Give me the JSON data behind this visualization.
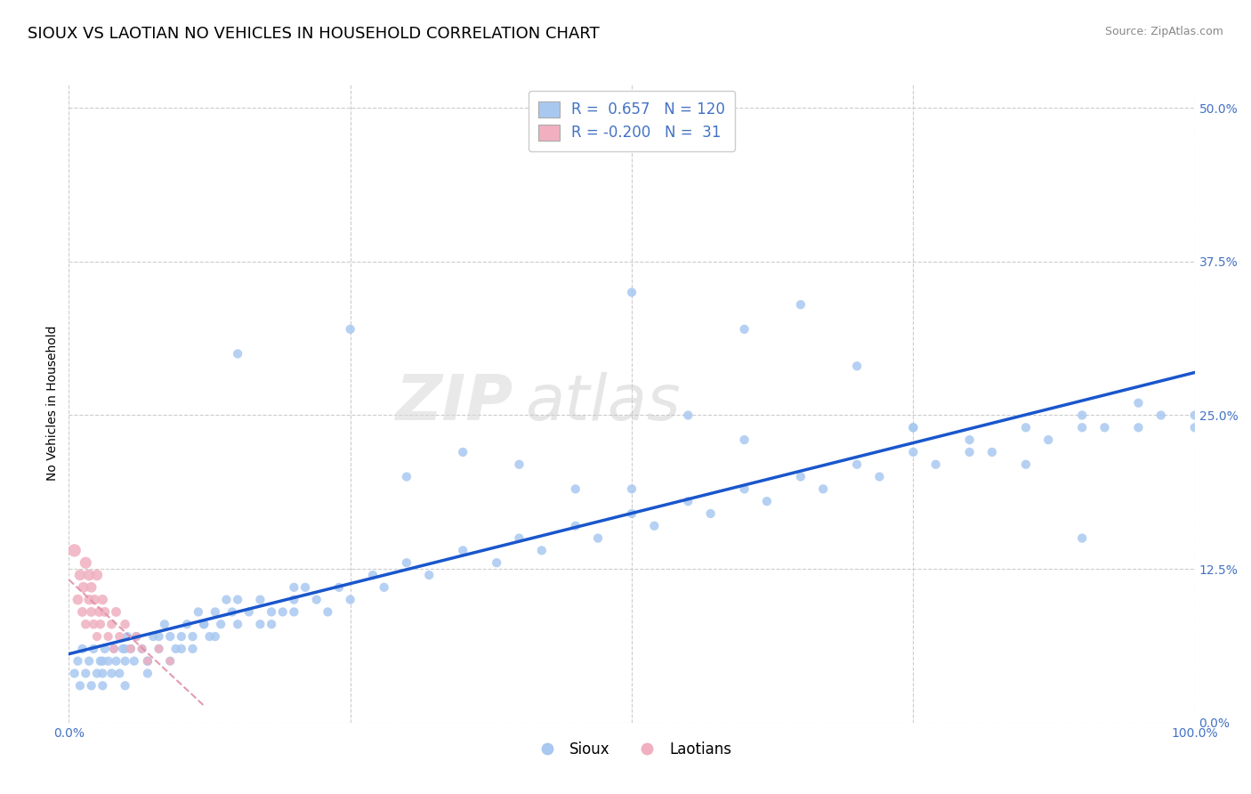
{
  "title": "SIOUX VS LAOTIAN NO VEHICLES IN HOUSEHOLD CORRELATION CHART",
  "source": "Source: ZipAtlas.com",
  "ylabel": "No Vehicles in Household",
  "xlim": [
    0.0,
    1.0
  ],
  "ylim": [
    0.0,
    0.52
  ],
  "ytick_labels": [
    "0.0%",
    "12.5%",
    "25.0%",
    "37.5%",
    "50.0%"
  ],
  "ytick_values": [
    0.0,
    0.125,
    0.25,
    0.375,
    0.5
  ],
  "xtick_labels": [
    "0.0%",
    "100.0%"
  ],
  "xtick_values": [
    0.0,
    1.0
  ],
  "sioux_R": 0.657,
  "sioux_N": 120,
  "laotian_R": -0.2,
  "laotian_N": 31,
  "sioux_color": "#a8c8f0",
  "laotian_color": "#f0b0c0",
  "sioux_line_color": "#1a56cc",
  "laotian_line_color": "#e090a8",
  "background_color": "#ffffff",
  "grid_color": "#cccccc",
  "watermark_zip": "ZIP",
  "watermark_atlas": "atlas",
  "title_fontsize": 13,
  "label_fontsize": 10,
  "tick_fontsize": 10,
  "legend_fontsize": 12,
  "accent_color": "#4472c4",
  "sioux_x": [
    0.005,
    0.008,
    0.01,
    0.012,
    0.015,
    0.018,
    0.02,
    0.022,
    0.025,
    0.028,
    0.03,
    0.032,
    0.035,
    0.038,
    0.04,
    0.042,
    0.045,
    0.048,
    0.05,
    0.052,
    0.055,
    0.058,
    0.06,
    0.065,
    0.07,
    0.075,
    0.08,
    0.085,
    0.09,
    0.095,
    0.1,
    0.105,
    0.11,
    0.115,
    0.12,
    0.125,
    0.13,
    0.135,
    0.14,
    0.145,
    0.15,
    0.16,
    0.17,
    0.18,
    0.19,
    0.2,
    0.21,
    0.22,
    0.23,
    0.24,
    0.25,
    0.27,
    0.28,
    0.3,
    0.32,
    0.35,
    0.38,
    0.4,
    0.42,
    0.45,
    0.47,
    0.5,
    0.52,
    0.55,
    0.57,
    0.6,
    0.62,
    0.65,
    0.67,
    0.7,
    0.72,
    0.75,
    0.77,
    0.8,
    0.82,
    0.85,
    0.87,
    0.9,
    0.92,
    0.95,
    0.97,
    1.0,
    0.03,
    0.05,
    0.07,
    0.08,
    0.1,
    0.12,
    0.15,
    0.18,
    0.2,
    0.25,
    0.3,
    0.35,
    0.4,
    0.45,
    0.5,
    0.55,
    0.6,
    0.65,
    0.7,
    0.75,
    0.8,
    0.85,
    0.9,
    0.95,
    1.0,
    0.03,
    0.05,
    0.07,
    0.09,
    0.11,
    0.13,
    0.15,
    0.17,
    0.2,
    0.5,
    0.6,
    0.75,
    0.9
  ],
  "sioux_y": [
    0.04,
    0.05,
    0.03,
    0.06,
    0.04,
    0.05,
    0.03,
    0.06,
    0.04,
    0.05,
    0.03,
    0.06,
    0.05,
    0.04,
    0.06,
    0.05,
    0.04,
    0.06,
    0.05,
    0.07,
    0.06,
    0.05,
    0.07,
    0.06,
    0.05,
    0.07,
    0.06,
    0.08,
    0.07,
    0.06,
    0.07,
    0.08,
    0.07,
    0.09,
    0.08,
    0.07,
    0.09,
    0.08,
    0.1,
    0.09,
    0.08,
    0.09,
    0.1,
    0.08,
    0.09,
    0.1,
    0.11,
    0.1,
    0.09,
    0.11,
    0.1,
    0.12,
    0.11,
    0.13,
    0.12,
    0.14,
    0.13,
    0.15,
    0.14,
    0.16,
    0.15,
    0.17,
    0.16,
    0.18,
    0.17,
    0.19,
    0.18,
    0.2,
    0.19,
    0.21,
    0.2,
    0.22,
    0.21,
    0.23,
    0.22,
    0.24,
    0.23,
    0.25,
    0.24,
    0.26,
    0.25,
    0.25,
    0.05,
    0.06,
    0.05,
    0.07,
    0.06,
    0.08,
    0.1,
    0.09,
    0.11,
    0.32,
    0.2,
    0.22,
    0.21,
    0.19,
    0.35,
    0.25,
    0.32,
    0.34,
    0.29,
    0.24,
    0.22,
    0.21,
    0.24,
    0.24,
    0.24,
    0.04,
    0.03,
    0.04,
    0.05,
    0.06,
    0.07,
    0.3,
    0.08,
    0.09,
    0.19,
    0.23,
    0.24,
    0.15
  ],
  "laotian_x": [
    0.005,
    0.008,
    0.01,
    0.012,
    0.013,
    0.015,
    0.015,
    0.018,
    0.018,
    0.02,
    0.02,
    0.022,
    0.023,
    0.025,
    0.025,
    0.027,
    0.028,
    0.03,
    0.032,
    0.035,
    0.038,
    0.04,
    0.042,
    0.045,
    0.05,
    0.055,
    0.06,
    0.065,
    0.07,
    0.08,
    0.09
  ],
  "laotian_y": [
    0.14,
    0.1,
    0.12,
    0.09,
    0.11,
    0.08,
    0.13,
    0.1,
    0.12,
    0.09,
    0.11,
    0.08,
    0.1,
    0.07,
    0.12,
    0.09,
    0.08,
    0.1,
    0.09,
    0.07,
    0.08,
    0.06,
    0.09,
    0.07,
    0.08,
    0.06,
    0.07,
    0.06,
    0.05,
    0.06,
    0.05
  ],
  "laotian_sizes": [
    120,
    80,
    90,
    70,
    85,
    65,
    100,
    75,
    95,
    70,
    80,
    65,
    75,
    60,
    90,
    70,
    65,
    75,
    70,
    60,
    65,
    55,
    70,
    60,
    65,
    55,
    60,
    55,
    50,
    55,
    50
  ]
}
